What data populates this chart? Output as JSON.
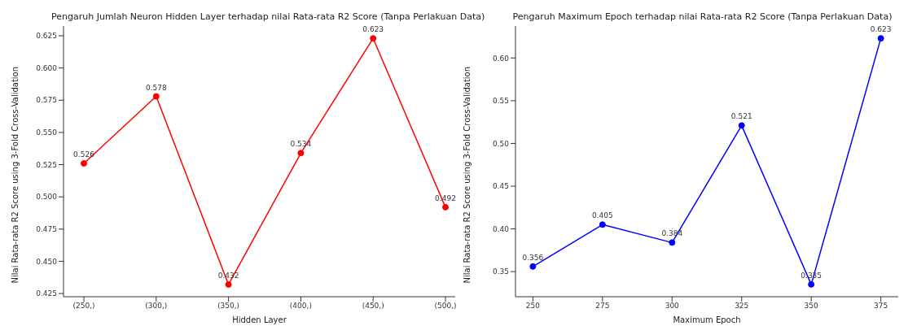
{
  "chart_data": [
    {
      "type": "line",
      "title": "Pengaruh Jumlah Neuron Hidden Layer terhadap nilai Rata-rata R2 Score (Tanpa Perlakuan Data)",
      "xlabel": "Hidden Layer",
      "ylabel": "Nilai Rata-rata R2 Score using 3-Fold Cross-Validation",
      "categories": [
        "(250,)",
        "(300,)",
        "(350,)",
        "(400,)",
        "(450,)",
        "(500,)"
      ],
      "series": [
        {
          "color": "#ff0000",
          "values": [
            0.526,
            0.578,
            0.432,
            0.534,
            0.623,
            0.492
          ]
        }
      ],
      "ylim": [
        0.4225,
        0.6326
      ],
      "yticks": [
        {
          "value": 0.425,
          "label": "0.425"
        },
        {
          "value": 0.45,
          "label": "0.450"
        },
        {
          "value": 0.475,
          "label": "0.475"
        },
        {
          "value": 0.5,
          "label": "0.500"
        },
        {
          "value": 0.525,
          "label": "0.525"
        },
        {
          "value": 0.55,
          "label": "0.550"
        },
        {
          "value": 0.575,
          "label": "0.575"
        },
        {
          "value": 0.6,
          "label": "0.600"
        },
        {
          "value": 0.625,
          "label": "0.625"
        }
      ],
      "data_labels": true,
      "marker": "circle",
      "line_style": "solid",
      "grid": false,
      "legend": false
    },
    {
      "type": "line",
      "title": "Pengaruh Maximum Epoch terhadap nilai Rata-rata R2 Score (Tanpa Perlakuan Data)",
      "xlabel": "Maximum Epoch",
      "ylabel": "Nilai Rata-rata R2 Score using 3-Fold Cross-Validation",
      "x": [
        250,
        275,
        300,
        325,
        350,
        375
      ],
      "series": [
        {
          "color": "#0000ff",
          "values": [
            0.356,
            0.405,
            0.384,
            0.521,
            0.335,
            0.623
          ]
        }
      ],
      "xlim": [
        243.75,
        381.25
      ],
      "xticks": [
        250,
        275,
        300,
        325,
        350,
        375
      ],
      "ylim": [
        0.3206,
        0.6374
      ],
      "yticks": [
        {
          "value": 0.35,
          "label": "0.35"
        },
        {
          "value": 0.4,
          "label": "0.40"
        },
        {
          "value": 0.45,
          "label": "0.45"
        },
        {
          "value": 0.5,
          "label": "0.50"
        },
        {
          "value": 0.55,
          "label": "0.55"
        },
        {
          "value": 0.6,
          "label": "0.60"
        }
      ],
      "data_labels": true,
      "marker": "circle",
      "line_style": "solid",
      "grid": false,
      "legend": false
    }
  ]
}
